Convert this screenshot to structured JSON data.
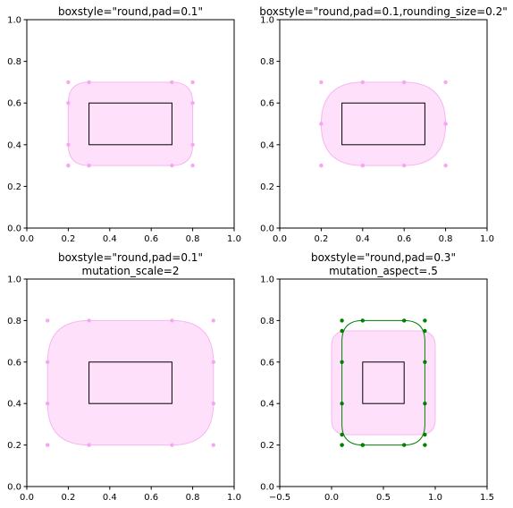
{
  "figure": {
    "background": "#ffffff"
  },
  "chart_data": [
    {
      "type": "scatter",
      "title_lines": [
        "boxstyle=\"round,pad=0.1\""
      ],
      "xlim": [
        0,
        1
      ],
      "ylim": [
        0,
        1
      ],
      "xticks": [
        "0.0",
        "0.2",
        "0.4",
        "0.6",
        "0.8",
        "1.0"
      ],
      "yticks": [
        "0.0",
        "0.2",
        "0.4",
        "0.6",
        "0.8",
        "1.0"
      ],
      "xtick_values": [
        0,
        0.2,
        0.4,
        0.6,
        0.8,
        1.0
      ],
      "ytick_values": [
        0,
        0.2,
        0.4,
        0.6,
        0.8,
        1.0
      ],
      "inner_rect": {
        "x0": 0.3,
        "y0": 0.4,
        "x1": 0.7,
        "y1": 0.6
      },
      "fancy_box": {
        "x0": 0.2,
        "y0": 0.3,
        "x1": 0.8,
        "y1": 0.7,
        "rx": 0.1,
        "ry": 0.1,
        "fill": "#ffe0fb",
        "stroke": "#f6b6f0"
      },
      "control_points": {
        "color": "#f7a6f3",
        "points": [
          [
            0.2,
            0.3
          ],
          [
            0.3,
            0.3
          ],
          [
            0.3,
            0.3
          ],
          [
            0.7,
            0.3
          ],
          [
            0.8,
            0.3
          ],
          [
            0.8,
            0.4
          ],
          [
            0.8,
            0.6
          ],
          [
            0.8,
            0.7
          ],
          [
            0.7,
            0.7
          ],
          [
            0.3,
            0.7
          ],
          [
            0.2,
            0.7
          ],
          [
            0.2,
            0.6
          ],
          [
            0.2,
            0.4
          ],
          [
            0.2,
            0.3
          ]
        ]
      }
    },
    {
      "type": "scatter",
      "title_lines": [
        "boxstyle=\"round,pad=0.1,rounding_size=0.2\""
      ],
      "xlim": [
        0,
        1
      ],
      "ylim": [
        0,
        1
      ],
      "xticks": [
        "0.0",
        "0.2",
        "0.4",
        "0.6",
        "0.8",
        "1.0"
      ],
      "yticks": [
        "0.0",
        "0.2",
        "0.4",
        "0.6",
        "0.8",
        "1.0"
      ],
      "xtick_values": [
        0,
        0.2,
        0.4,
        0.6,
        0.8,
        1.0
      ],
      "ytick_values": [
        0,
        0.2,
        0.4,
        0.6,
        0.8,
        1.0
      ],
      "inner_rect": {
        "x0": 0.3,
        "y0": 0.4,
        "x1": 0.7,
        "y1": 0.6
      },
      "fancy_box": {
        "x0": 0.2,
        "y0": 0.3,
        "x1": 0.8,
        "y1": 0.7,
        "rx": 0.2,
        "ry": 0.2,
        "fill": "#ffe0fb",
        "stroke": "#f6b6f0"
      },
      "control_points": {
        "color": "#f7a6f3",
        "points": [
          [
            0.2,
            0.3
          ],
          [
            0.4,
            0.3
          ],
          [
            0.4,
            0.3
          ],
          [
            0.6,
            0.3
          ],
          [
            0.8,
            0.3
          ],
          [
            0.8,
            0.5
          ],
          [
            0.8,
            0.5
          ],
          [
            0.8,
            0.7
          ],
          [
            0.6,
            0.7
          ],
          [
            0.4,
            0.7
          ],
          [
            0.2,
            0.7
          ],
          [
            0.2,
            0.5
          ],
          [
            0.2,
            0.5
          ],
          [
            0.2,
            0.3
          ]
        ]
      }
    },
    {
      "type": "scatter",
      "title_lines": [
        "boxstyle=\"round,pad=0.1\"",
        "mutation_scale=2"
      ],
      "xlim": [
        0,
        1
      ],
      "ylim": [
        0,
        1
      ],
      "xticks": [
        "0.0",
        "0.2",
        "0.4",
        "0.6",
        "0.8",
        "1.0"
      ],
      "yticks": [
        "0.0",
        "0.2",
        "0.4",
        "0.6",
        "0.8",
        "1.0"
      ],
      "xtick_values": [
        0,
        0.2,
        0.4,
        0.6,
        0.8,
        1.0
      ],
      "ytick_values": [
        0,
        0.2,
        0.4,
        0.6,
        0.8,
        1.0
      ],
      "inner_rect": {
        "x0": 0.3,
        "y0": 0.4,
        "x1": 0.7,
        "y1": 0.6
      },
      "fancy_box": {
        "x0": 0.1,
        "y0": 0.2,
        "x1": 0.9,
        "y1": 0.8,
        "rx": 0.2,
        "ry": 0.2,
        "fill": "#ffe0fb",
        "stroke": "#f6b6f0"
      },
      "control_points": {
        "color": "#f7a6f3",
        "points": [
          [
            0.1,
            0.2
          ],
          [
            0.3,
            0.2
          ],
          [
            0.3,
            0.2
          ],
          [
            0.7,
            0.2
          ],
          [
            0.9,
            0.2
          ],
          [
            0.9,
            0.4
          ],
          [
            0.9,
            0.6
          ],
          [
            0.9,
            0.8
          ],
          [
            0.7,
            0.8
          ],
          [
            0.3,
            0.8
          ],
          [
            0.1,
            0.8
          ],
          [
            0.1,
            0.6
          ],
          [
            0.1,
            0.4
          ],
          [
            0.1,
            0.2
          ]
        ]
      }
    },
    {
      "type": "scatter",
      "title_lines": [
        "boxstyle=\"round,pad=0.3\"",
        "mutation_aspect=.5"
      ],
      "xlim": [
        -0.5,
        1.5
      ],
      "ylim": [
        0,
        1
      ],
      "xticks": [
        "−0.5",
        "0.0",
        "0.5",
        "1.0",
        "1.5"
      ],
      "yticks": [
        "0.0",
        "0.2",
        "0.4",
        "0.6",
        "0.8",
        "1.0"
      ],
      "xtick_values": [
        -0.5,
        0,
        0.5,
        1.0,
        1.5
      ],
      "ytick_values": [
        0,
        0.2,
        0.4,
        0.6,
        0.8,
        1.0
      ],
      "inner_rect": {
        "x0": 0.3,
        "y0": 0.4,
        "x1": 0.7,
        "y1": 0.6
      },
      "fancy_box": {
        "x0": 0.0,
        "y0": 0.25,
        "x1": 1.0,
        "y1": 0.75,
        "rx": 0.15,
        "ry": 0.075,
        "fill": "#ffe0fb",
        "stroke": "#f6b6f0"
      },
      "outline_box": {
        "x0": 0.1,
        "y0": 0.2,
        "x1": 0.9,
        "y1": 0.8,
        "rx": 0.2,
        "ry": 0.1,
        "stroke": "#008000"
      },
      "control_points": {
        "color": "#008000",
        "points": [
          [
            0.1,
            0.2
          ],
          [
            0.3,
            0.2
          ],
          [
            0.3,
            0.2
          ],
          [
            0.7,
            0.2
          ],
          [
            0.9,
            0.2
          ],
          [
            0.9,
            0.4
          ],
          [
            0.9,
            0.6
          ],
          [
            0.9,
            0.8
          ],
          [
            0.7,
            0.8
          ],
          [
            0.3,
            0.8
          ],
          [
            0.1,
            0.8
          ],
          [
            0.1,
            0.6
          ],
          [
            0.1,
            0.4
          ],
          [
            0.1,
            0.2
          ],
          [
            0.1,
            0.25
          ],
          [
            0.9,
            0.25
          ],
          [
            0.9,
            0.75
          ],
          [
            0.1,
            0.75
          ]
        ]
      }
    }
  ]
}
